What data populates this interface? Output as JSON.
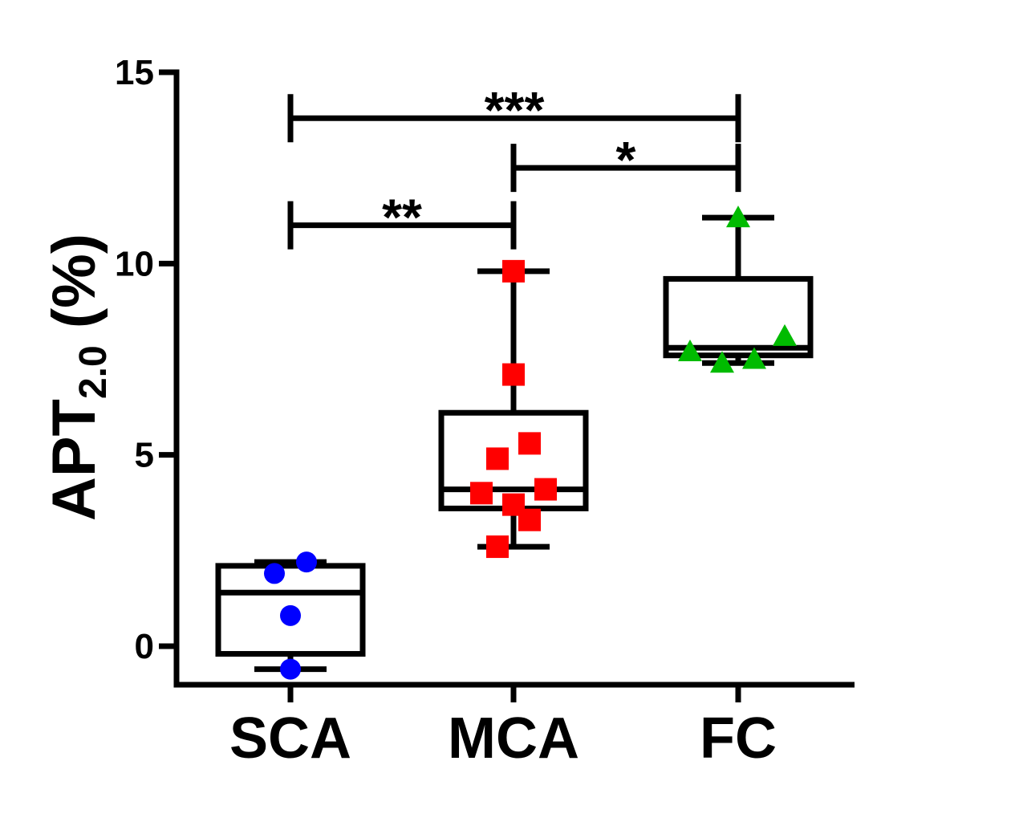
{
  "chart_data": {
    "type": "box",
    "ylabel": {
      "main": "APT",
      "subscript": "2.0",
      "suffix": " (%)"
    },
    "xlabel": "",
    "ylim": [
      -1,
      15
    ],
    "yticks": [
      0,
      5,
      10,
      15
    ],
    "grid": false,
    "legend": "none",
    "categories": [
      "SCA",
      "MCA",
      "FC"
    ],
    "series": [
      {
        "category": "SCA",
        "marker": "circle",
        "color": "#0000ff",
        "box": {
          "min": -0.6,
          "q1": -0.2,
          "median": 1.4,
          "q3": 2.1,
          "max": 2.2
        },
        "points": [
          2.2,
          1.9,
          0.8,
          -0.6
        ]
      },
      {
        "category": "MCA",
        "marker": "square",
        "color": "#ff0000",
        "box": {
          "min": 2.6,
          "q1": 3.6,
          "median": 4.1,
          "q3": 6.1,
          "max": 9.8
        },
        "points": [
          9.8,
          7.1,
          5.3,
          4.9,
          4.1,
          4.0,
          3.7,
          3.3,
          2.6
        ]
      },
      {
        "category": "FC",
        "marker": "triangle",
        "color": "#00bb00",
        "box": {
          "min": 7.4,
          "q1": 7.6,
          "median": 7.8,
          "q3": 9.6,
          "max": 11.2
        },
        "points": [
          11.2,
          8.1,
          7.7,
          7.5,
          7.4
        ]
      }
    ],
    "significance": [
      {
        "from": "SCA",
        "to": "MCA",
        "y": 11.0,
        "label": "**"
      },
      {
        "from": "MCA",
        "to": "FC",
        "y": 12.5,
        "label": "*"
      },
      {
        "from": "SCA",
        "to": "FC",
        "y": 13.8,
        "label": "***"
      }
    ]
  }
}
